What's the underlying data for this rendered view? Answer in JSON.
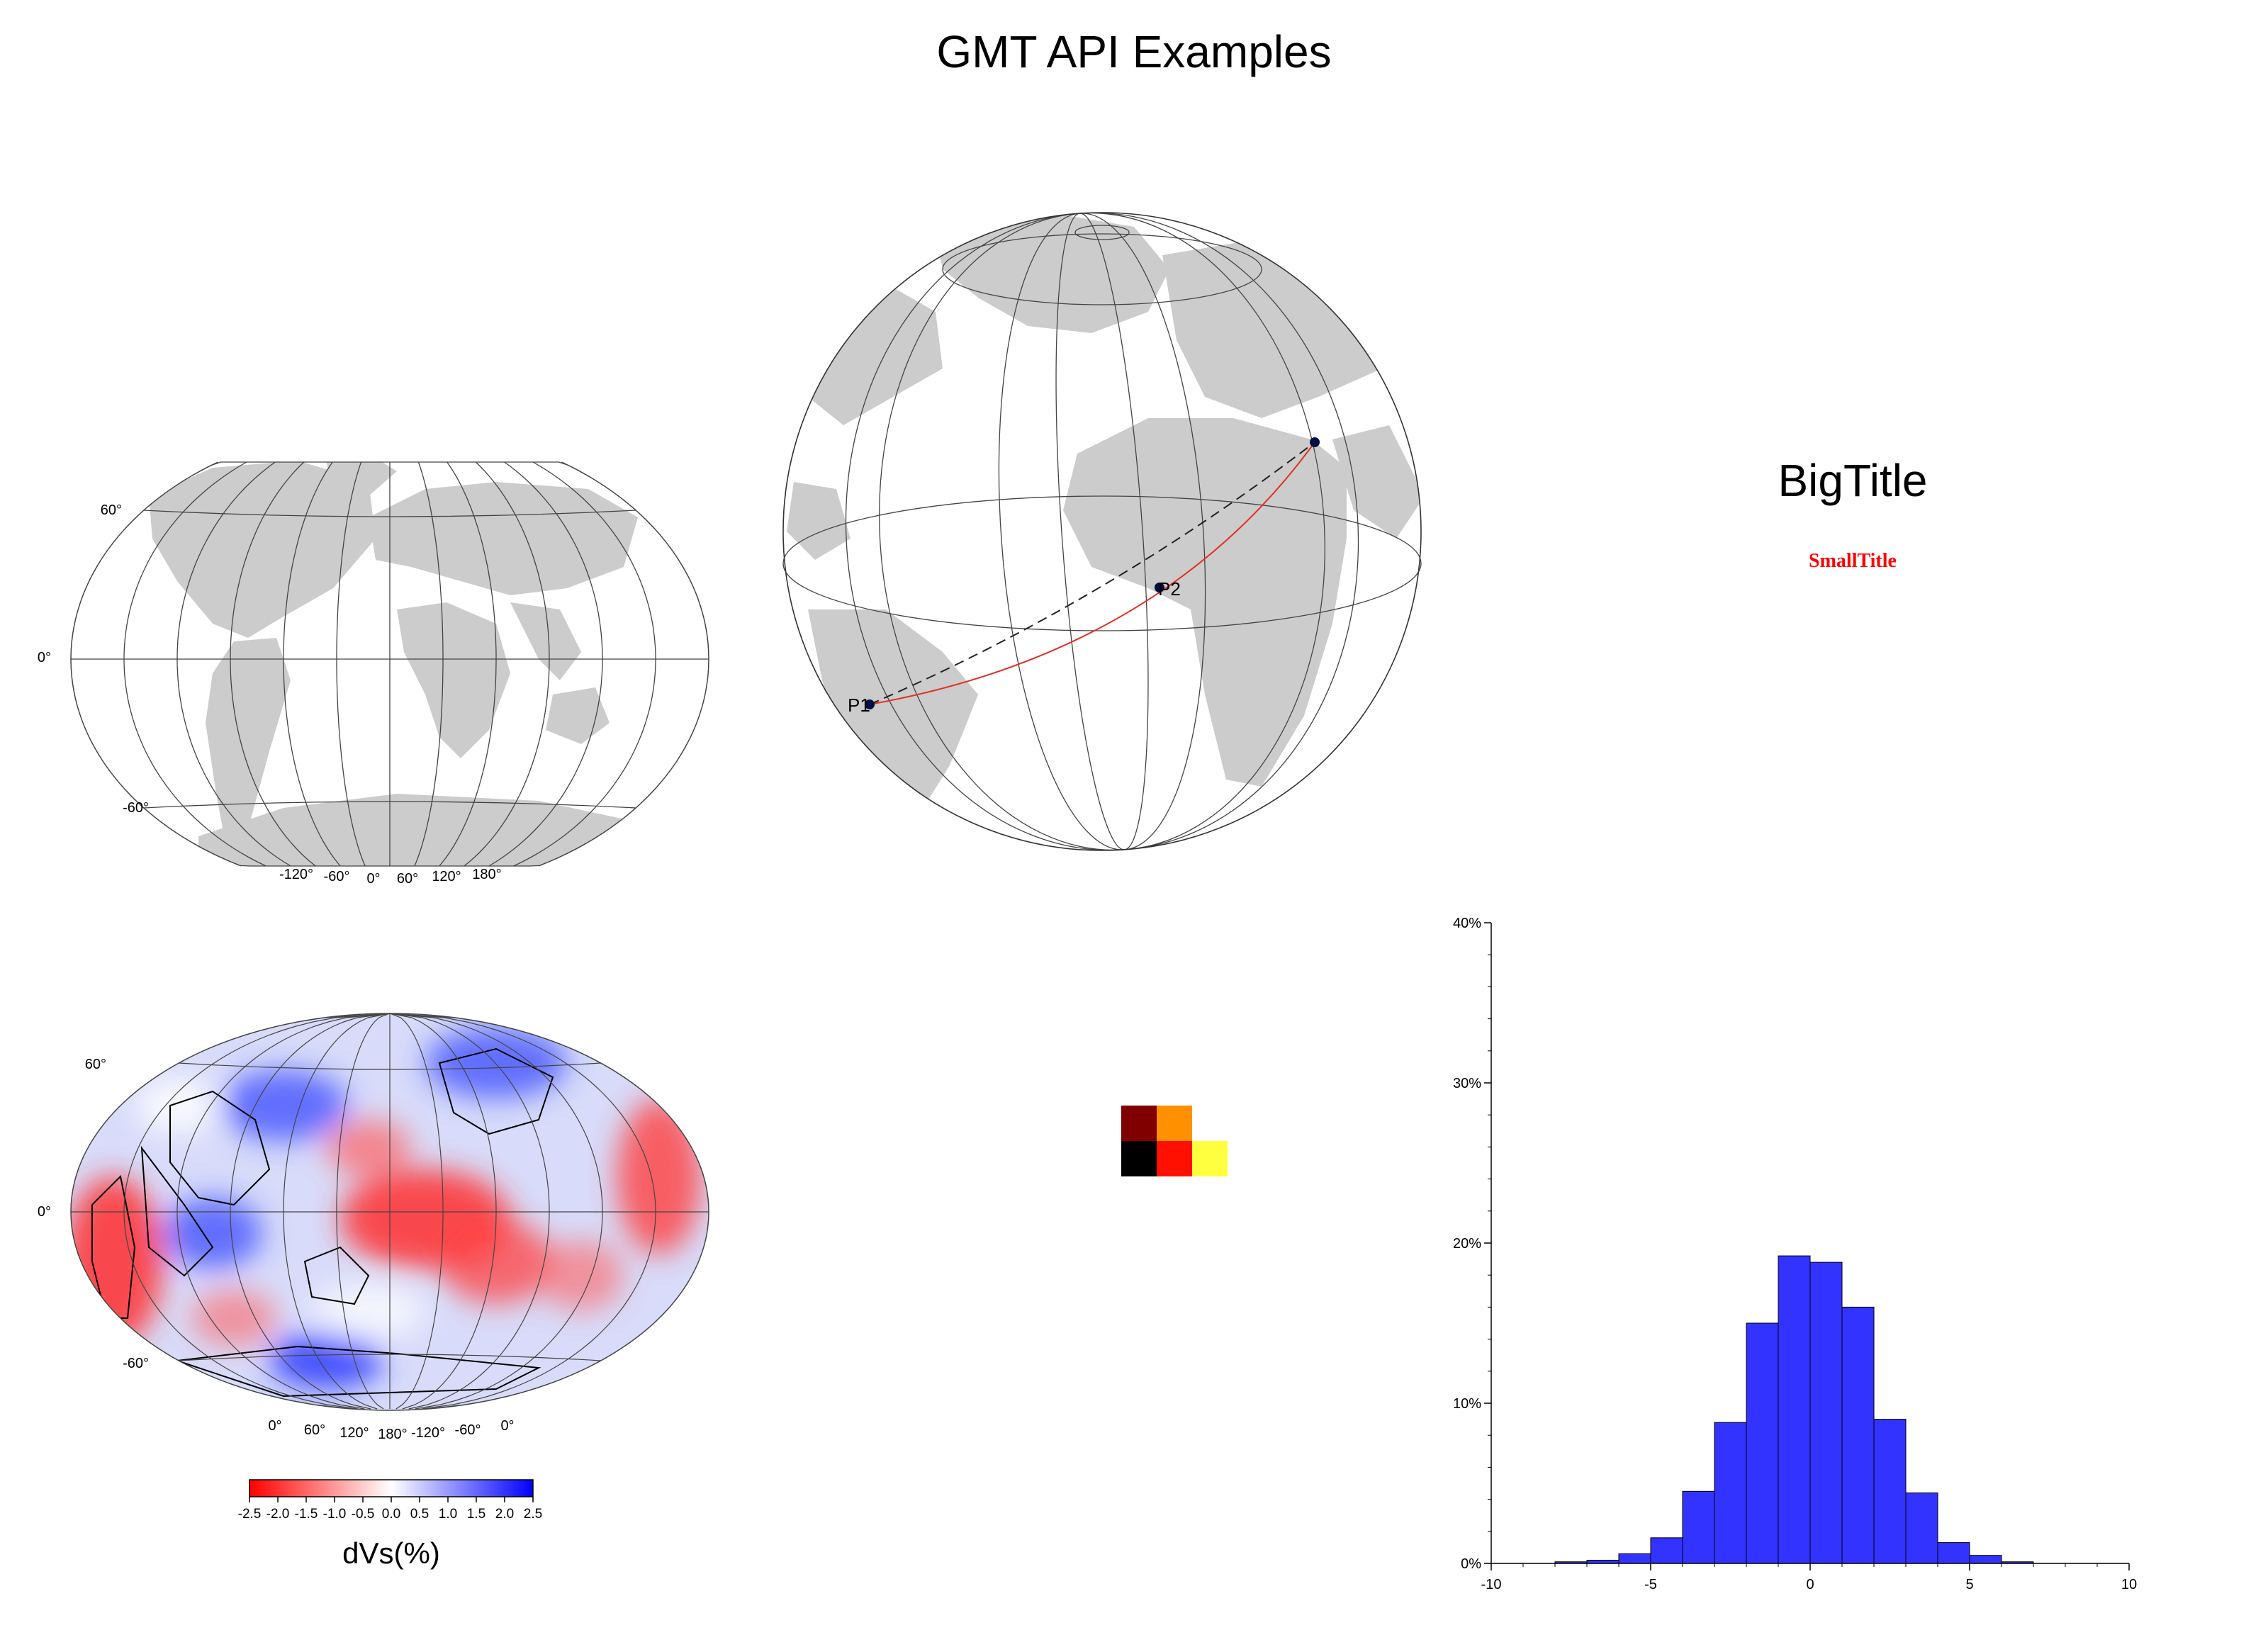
{
  "page": {
    "title": "GMT API Examples"
  },
  "panels": {
    "world_map": {
      "lat_labels": [
        "60°",
        "0°",
        "-60°"
      ],
      "lon_labels": [
        "-120°",
        "-60°",
        "0°",
        "60°",
        "120°",
        "180°"
      ]
    },
    "globe": {
      "point_labels": [
        "P1",
        "P2"
      ],
      "colors": {
        "great_circle": "#e03020",
        "straight_path": "#000000",
        "land": "#cccccc"
      }
    },
    "titles": {
      "big": "BigTitle",
      "small": "SmallTitle",
      "small_color": "#ff0000"
    },
    "tomography_map": {
      "lat_labels": [
        "60°",
        "0°",
        "-60°"
      ],
      "lon_labels": [
        "0°",
        "60°",
        "120°",
        "180°",
        "-120°",
        "-60°",
        "0°"
      ],
      "colorbar": {
        "label": "dVs(%)",
        "ticks": [
          "-2.5",
          "-2.0",
          "-1.5",
          "-1.0",
          "-0.5",
          "0.0",
          "0.5",
          "1.0",
          "1.5",
          "2.0",
          "2.5"
        ],
        "colors": [
          "#ff0000",
          "#ffffff",
          "#0000ff"
        ]
      }
    },
    "color_swatch": {
      "cells": [
        {
          "col": 0,
          "row": 0,
          "color": "#800000"
        },
        {
          "col": 1,
          "row": 0,
          "color": "#ff9000"
        },
        {
          "col": 0,
          "row": 1,
          "color": "#000000"
        },
        {
          "col": 1,
          "row": 1,
          "color": "#ff1000"
        },
        {
          "col": 2,
          "row": 1,
          "color": "#ffff40"
        }
      ]
    }
  },
  "chart_data": {
    "type": "bar",
    "x": [
      -8,
      -7,
      -6,
      -5,
      -4,
      -3,
      -2,
      -1,
      0,
      1,
      2,
      3,
      4,
      5,
      6
    ],
    "bin_width": 1,
    "values": [
      0.1,
      0.2,
      0.6,
      1.6,
      4.5,
      8.8,
      15.0,
      19.2,
      18.8,
      16.0,
      9.0,
      4.4,
      1.3,
      0.5,
      0.1
    ],
    "xlim": [
      -10,
      10
    ],
    "ylim": [
      0,
      40
    ],
    "xticks": [
      "-10",
      "-5",
      "0",
      "5",
      "10"
    ],
    "yticks": [
      "0%",
      "10%",
      "20%",
      "30%",
      "40%"
    ],
    "bar_color": "#3333ff",
    "title": "",
    "xlabel": "",
    "ylabel": ""
  }
}
